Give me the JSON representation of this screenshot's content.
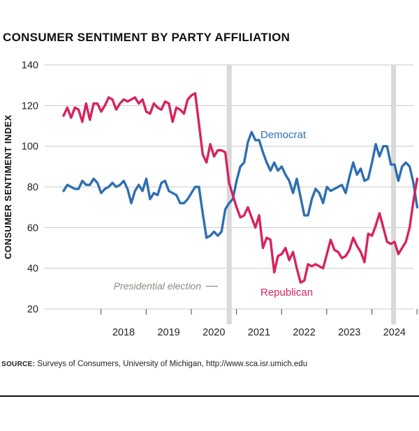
{
  "chart_data": {
    "type": "line",
    "title": "CONSUMER SENTIMENT BY PARTY AFFILIATION",
    "ylabel": "CONSUMER SENTIMENT INDEX",
    "xlabel": "",
    "ylim": [
      20,
      140
    ],
    "xlim": [
      2017.0,
      2024.92
    ],
    "y_ticks": [
      20,
      40,
      60,
      80,
      100,
      120,
      140
    ],
    "x_ticks": [
      2018,
      2019,
      2020,
      2021,
      2022,
      2023,
      2024
    ],
    "x_tick_labels": [
      "2018",
      "2019",
      "2020",
      "2021",
      "2022",
      "2023",
      "2024"
    ],
    "grid": "horizontal",
    "election_markers": [
      2020.84,
      2024.48
    ],
    "annotation": "Presidential election",
    "series": [
      {
        "name": "Democrat",
        "color": "#2e6fb0",
        "label_color": "#2e6fb0",
        "start": 2017.17,
        "step": 0.08333,
        "values": [
          78,
          81,
          80,
          79,
          79,
          83,
          81,
          81,
          84,
          82,
          77,
          79,
          80,
          82,
          80,
          81,
          83,
          79,
          72,
          78,
          81,
          78,
          84,
          74,
          77,
          76,
          82,
          83,
          78,
          77,
          76,
          72,
          72,
          74,
          77,
          80,
          80,
          67,
          55,
          56,
          58,
          56,
          58,
          69,
          72,
          74,
          83,
          90,
          92,
          102,
          107,
          103,
          103,
          97,
          92,
          88,
          92,
          88,
          90,
          86,
          83,
          77,
          84,
          75,
          66,
          66,
          74,
          79,
          77,
          72,
          80,
          78,
          79,
          80,
          81,
          77,
          85,
          92,
          86,
          89,
          83,
          84,
          92,
          101,
          95,
          100,
          100,
          91,
          91,
          83,
          90,
          92,
          90,
          82,
          70
        ]
      },
      {
        "name": "Republican",
        "color": "#d6245e",
        "label_color": "#d6245e",
        "start": 2017.17,
        "step": 0.08333,
        "values": [
          115,
          119,
          114,
          119,
          118,
          112,
          121,
          113,
          121,
          121,
          117,
          120,
          124,
          123,
          118,
          121,
          123,
          122,
          123,
          124,
          121,
          123,
          117,
          116,
          121,
          119,
          118,
          122,
          121,
          112,
          119,
          118,
          116,
          123,
          125,
          126,
          111,
          96,
          92,
          101,
          95,
          98,
          98,
          97,
          82,
          76,
          70,
          65,
          66,
          70,
          65,
          60,
          66,
          50,
          55,
          54,
          38,
          46,
          47,
          50,
          44,
          48,
          40,
          33,
          34,
          42,
          41,
          42,
          41,
          40,
          47,
          54,
          49,
          48,
          45,
          46,
          49,
          55,
          51,
          48,
          43,
          57,
          56,
          61,
          67,
          60,
          53,
          52,
          53,
          47,
          50,
          53,
          60,
          73,
          84
        ]
      }
    ]
  },
  "source": {
    "label": "Source:",
    "text": "Surveys of Consumers, University of Michigan, http://www.sca.isr.umich.edu"
  }
}
